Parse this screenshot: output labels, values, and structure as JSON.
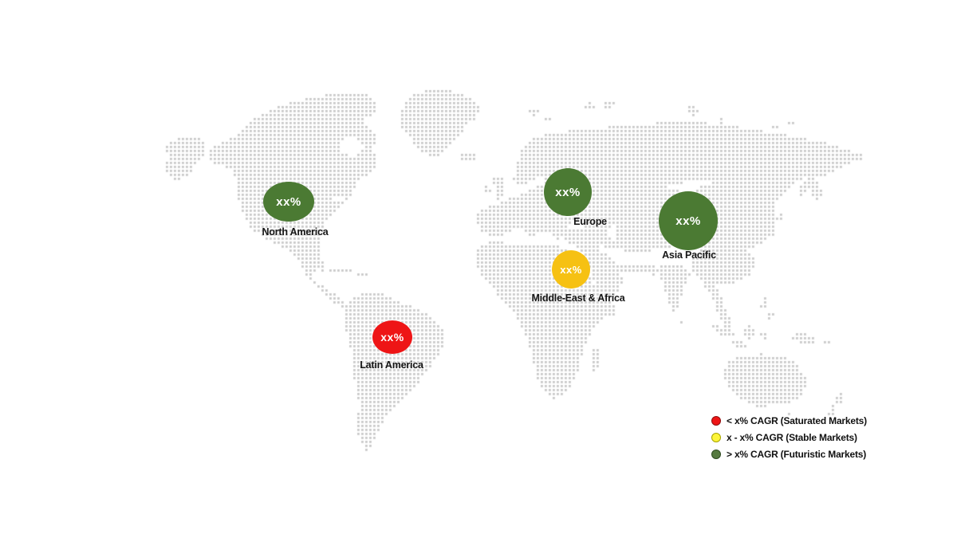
{
  "chart_data": {
    "type": "map-bubble",
    "title": "",
    "map_style": "dotted world map",
    "dot_color": "#c9c9c9",
    "regions": [
      {
        "name": "North America",
        "value": "xx%",
        "market_type": "Futuristic Markets",
        "color": "#4b7a33"
      },
      {
        "name": "Europe",
        "value": "xx%",
        "market_type": "Futuristic Markets",
        "color": "#4b7a33"
      },
      {
        "name": "Asia Pacific",
        "value": "xx%",
        "market_type": "Futuristic Markets",
        "color": "#4b7a33"
      },
      {
        "name": "Middle-East & Africa",
        "value": "xx%",
        "market_type": "Stable Markets",
        "color": "#f6c113"
      },
      {
        "name": "Latin America",
        "value": "xx%",
        "market_type": "Saturated Markets",
        "color": "#ee1516"
      }
    ],
    "legend": [
      {
        "label": "< x% CAGR (Saturated Markets)",
        "color": "#ee1516",
        "stroke": "#8e0f0f"
      },
      {
        "label": "x - x% CAGR (Stable Markets)",
        "color": "#fdf53a",
        "stroke": "#a8a400"
      },
      {
        "label": "> x% CAGR (Futuristic Markets)",
        "color": "#567a40",
        "stroke": "#2e4a21"
      }
    ],
    "legend_position": "bottom-right"
  }
}
